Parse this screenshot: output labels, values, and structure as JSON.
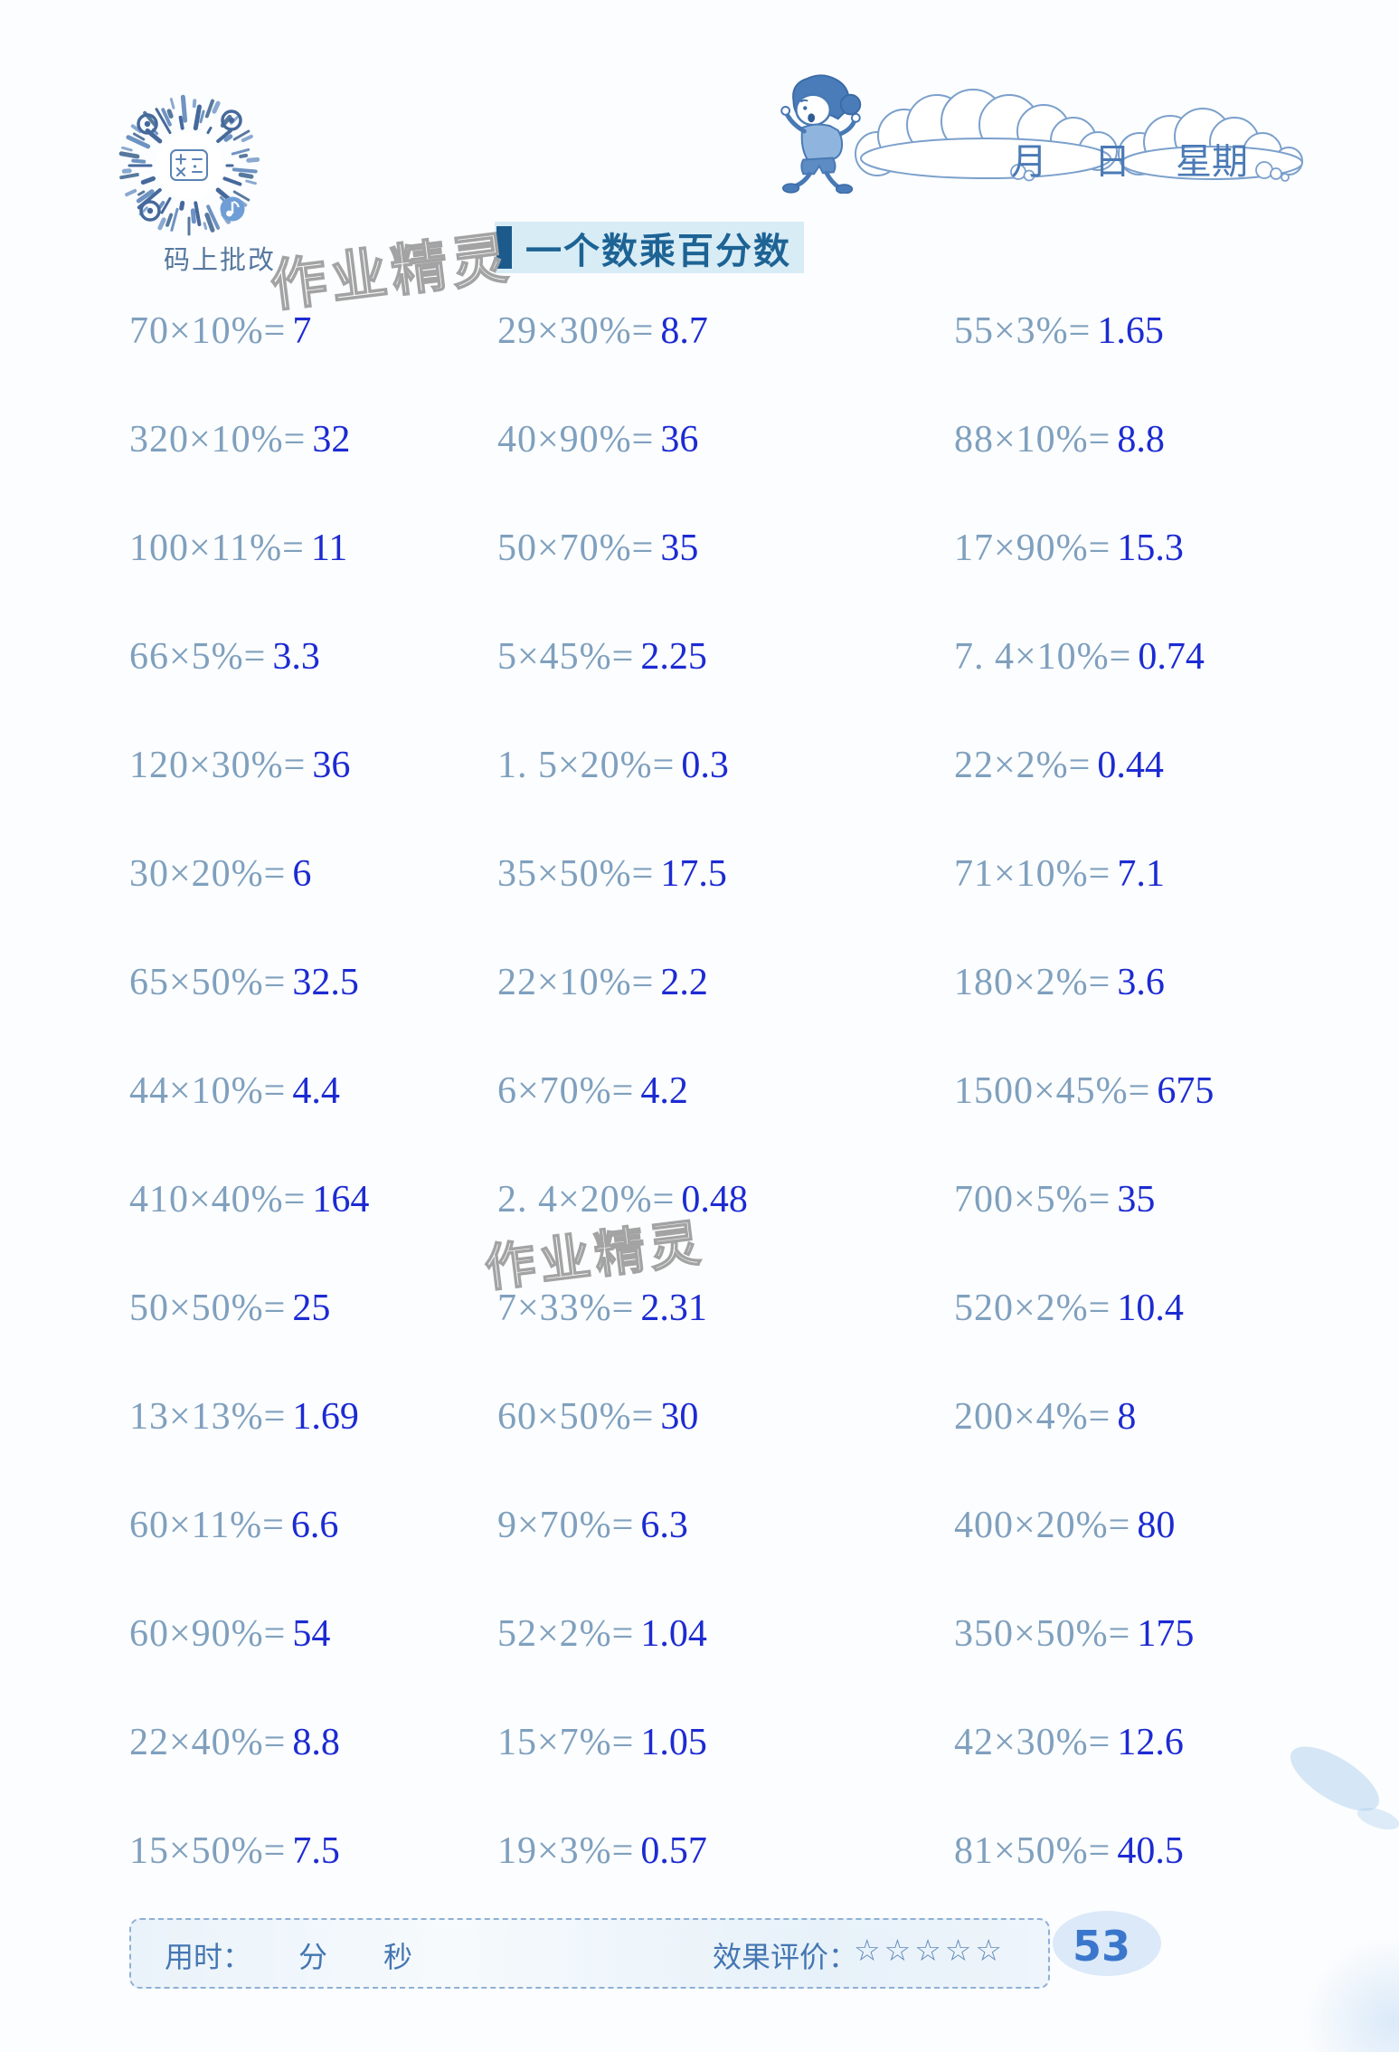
{
  "page": {
    "number": "53"
  },
  "header": {
    "qr_label": "码上批改",
    "date": {
      "month": "月",
      "day": "日",
      "week": "星期"
    },
    "title": "一个数乘百分数"
  },
  "watermark": {
    "text": "作业精灵"
  },
  "problems": {
    "rows": [
      [
        {
          "q": "70×10%=",
          "a": "7"
        },
        {
          "q": "29×30%=",
          "a": "8.7"
        },
        {
          "q": "55×3%=",
          "a": "1.65"
        }
      ],
      [
        {
          "q": "320×10%=",
          "a": "32"
        },
        {
          "q": "40×90%=",
          "a": "36"
        },
        {
          "q": "88×10%=",
          "a": "8.8"
        }
      ],
      [
        {
          "q": "100×11%=",
          "a": "11"
        },
        {
          "q": "50×70%=",
          "a": "35"
        },
        {
          "q": "17×90%=",
          "a": "15.3"
        }
      ],
      [
        {
          "q": "66×5%=",
          "a": "3.3"
        },
        {
          "q": "5×45%=",
          "a": "2.25"
        },
        {
          "q": "7. 4×10%=",
          "a": "0.74"
        }
      ],
      [
        {
          "q": "120×30%=",
          "a": "36"
        },
        {
          "q": "1. 5×20%=",
          "a": "0.3"
        },
        {
          "q": "22×2%=",
          "a": "0.44"
        }
      ],
      [
        {
          "q": "30×20%=",
          "a": "6"
        },
        {
          "q": "35×50%=",
          "a": "17.5"
        },
        {
          "q": "71×10%=",
          "a": "7.1"
        }
      ],
      [
        {
          "q": "65×50%=",
          "a": "32.5"
        },
        {
          "q": "22×10%=",
          "a": "2.2"
        },
        {
          "q": "180×2%=",
          "a": "3.6"
        }
      ],
      [
        {
          "q": "44×10%=",
          "a": "4.4"
        },
        {
          "q": "6×70%=",
          "a": "4.2"
        },
        {
          "q": "1500×45%=",
          "a": "675"
        }
      ],
      [
        {
          "q": "410×40%=",
          "a": "164"
        },
        {
          "q": "2. 4×20%=",
          "a": "0.48"
        },
        {
          "q": "700×5%=",
          "a": "35"
        }
      ],
      [
        {
          "q": "50×50%=",
          "a": "25"
        },
        {
          "q": "7×33%=",
          "a": "2.31"
        },
        {
          "q": "520×2%=",
          "a": "10.4"
        }
      ],
      [
        {
          "q": "13×13%=",
          "a": "1.69"
        },
        {
          "q": "60×50%=",
          "a": "30"
        },
        {
          "q": "200×4%=",
          "a": "8"
        }
      ],
      [
        {
          "q": "60×11%=",
          "a": "6.6"
        },
        {
          "q": "9×70%=",
          "a": "6.3"
        },
        {
          "q": "400×20%=",
          "a": "80"
        }
      ],
      [
        {
          "q": "60×90%=",
          "a": "54"
        },
        {
          "q": "52×2%=",
          "a": "1.04"
        },
        {
          "q": "350×50%=",
          "a": "175"
        }
      ],
      [
        {
          "q": "22×40%=",
          "a": "8.8"
        },
        {
          "q": "15×7%=",
          "a": "1.05"
        },
        {
          "q": "42×30%=",
          "a": "12.6"
        }
      ],
      [
        {
          "q": "15×50%=",
          "a": "7.5"
        },
        {
          "q": "19×3%=",
          "a": "0.57"
        },
        {
          "q": "81×50%=",
          "a": "40.5"
        }
      ]
    ]
  },
  "footer": {
    "time_label": "用时：",
    "minute_label": "分",
    "second_label": "秒",
    "evaluation_label": "效果评价：",
    "stars": [
      "☆",
      "☆",
      "☆",
      "☆",
      "☆"
    ]
  },
  "colors": {
    "ink-blue": "#1c2bd2",
    "print-blue": "#7fa0be",
    "title-blue": "#1d6394",
    "title-band": "#d8ecf6",
    "title-bar": "#1c5a8c",
    "footer-blue": "#4476b2",
    "star-blue": "#6189bb",
    "page-number-blue": "#3a77cc",
    "qr-blue": "#46699c"
  }
}
